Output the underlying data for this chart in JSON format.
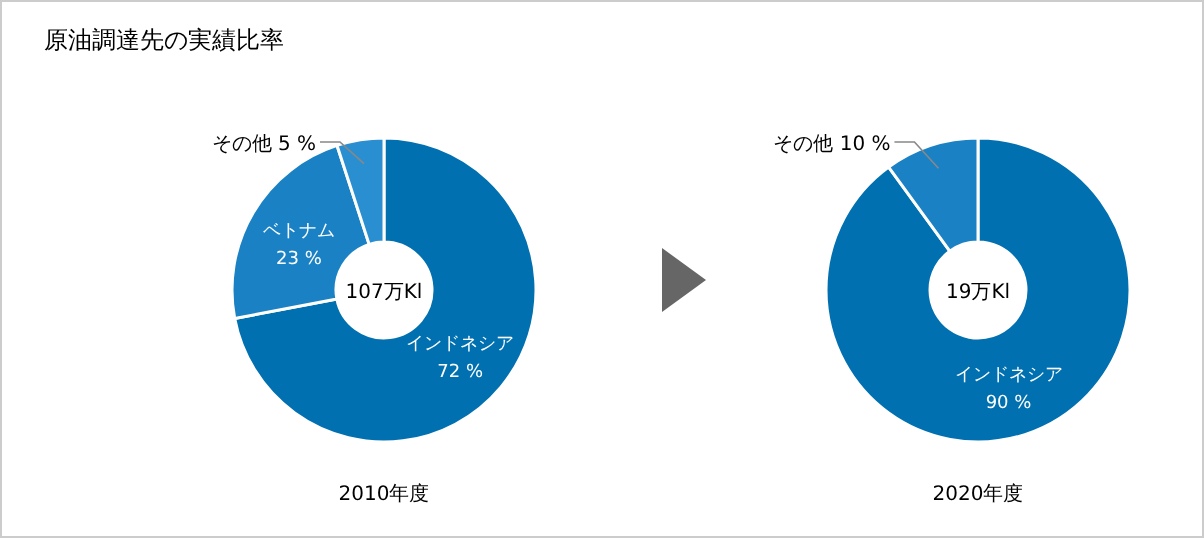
{
  "chart_data": [
    {
      "type": "donut",
      "title": "原油調達先の実績比率",
      "xlabel": "2010年度",
      "annotations": [
        "107万Kl"
      ],
      "categories": [
        "インドネシア",
        "ベトナム",
        "その他"
      ],
      "values": [
        72,
        23,
        5
      ],
      "value_labels": [
        "72 %",
        "23 %",
        "5 %"
      ],
      "colors": [
        "#0070b0",
        "#1a82c4",
        "#2a8fd0"
      ],
      "legend": false
    },
    {
      "type": "donut",
      "xlabel": "2020年度",
      "annotations": [
        "19万Kl"
      ],
      "categories": [
        "インドネシア",
        "その他"
      ],
      "values": [
        90,
        10
      ],
      "value_labels": [
        "90 %",
        "10 %"
      ],
      "colors": [
        "#0070b0",
        "#1a82c4"
      ],
      "legend": false
    }
  ]
}
